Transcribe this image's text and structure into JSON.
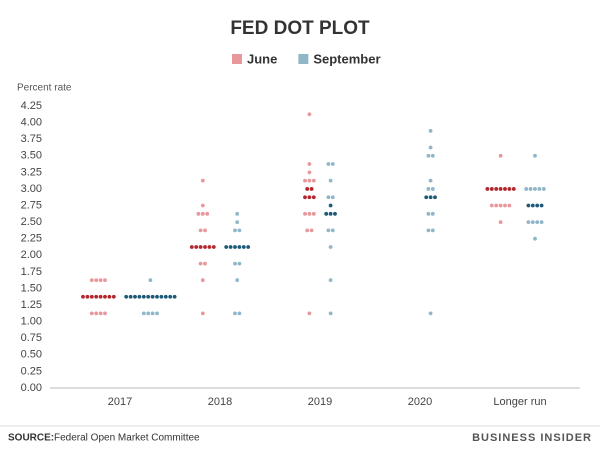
{
  "chart_data": {
    "type": "dot",
    "title": "FED DOT PLOT",
    "y_label": "Percent rate",
    "categories": [
      "2017",
      "2018",
      "2019",
      "2020",
      "Longer run"
    ],
    "ylim": [
      0,
      4.25
    ],
    "yticks": [
      {
        "value": 0,
        "label": "0.00"
      },
      {
        "value": 0.25,
        "label": "0.25"
      },
      {
        "value": 0.5,
        "label": "0.50"
      },
      {
        "value": 0.75,
        "label": "0.75"
      },
      {
        "value": 1,
        "label": "1.00"
      },
      {
        "value": 1.25,
        "label": "1.25"
      },
      {
        "value": 1.5,
        "label": "1.50"
      },
      {
        "value": 1.75,
        "label": "1.75"
      },
      {
        "value": 2,
        "label": "2.00"
      },
      {
        "value": 2.25,
        "label": "2.25"
      },
      {
        "value": 2.5,
        "label": "2.50"
      },
      {
        "value": 2.75,
        "label": "2.75"
      },
      {
        "value": 3,
        "label": "3.00"
      },
      {
        "value": 3.25,
        "label": "3.25"
      },
      {
        "value": 3.5,
        "label": "3.50"
      },
      {
        "value": 3.75,
        "label": "3.75"
      },
      {
        "value": 4,
        "label": "4.00"
      },
      {
        "value": 4.25,
        "label": "4.25"
      }
    ],
    "series": [
      {
        "name": "June",
        "color": "#e8979b",
        "median_color": "#b3282d",
        "values": [
          [
            1.625,
            1.625,
            1.625,
            1.625,
            1.375,
            1.375,
            1.375,
            1.375,
            1.375,
            1.375,
            1.375,
            1.375,
            1.125,
            1.125,
            1.125,
            1.125
          ],
          [
            3.125,
            2.75,
            2.625,
            2.625,
            2.625,
            2.375,
            2.375,
            2.125,
            2.125,
            2.125,
            2.125,
            2.125,
            2.125,
            1.875,
            1.875,
            1.625,
            1.125
          ],
          [
            4.125,
            3.375,
            3.25,
            3.125,
            3.125,
            3.125,
            3,
            3,
            2.875,
            2.875,
            2.875,
            2.625,
            2.625,
            2.625,
            2.375,
            2.375,
            1.125
          ],
          [],
          [
            3.5,
            3,
            3,
            3,
            3,
            3,
            3,
            3,
            2.75,
            2.75,
            2.75,
            2.75,
            2.75,
            2.5
          ]
        ],
        "medians": [
          [
            1.375
          ],
          [
            2.125
          ],
          [
            3,
            2.875
          ],
          [],
          [
            3
          ]
        ]
      },
      {
        "name": "September",
        "color": "#8fb7c8",
        "median_color": "#1c5a78",
        "values": [
          [
            1.625,
            1.375,
            1.375,
            1.375,
            1.375,
            1.375,
            1.375,
            1.375,
            1.375,
            1.375,
            1.375,
            1.375,
            1.375,
            1.125,
            1.125,
            1.125,
            1.125
          ],
          [
            2.625,
            2.5,
            2.375,
            2.375,
            2.125,
            2.125,
            2.125,
            2.125,
            2.125,
            2.125,
            1.875,
            1.875,
            1.625,
            1.125,
            1.125
          ],
          [
            3.375,
            3.375,
            3.125,
            2.875,
            2.875,
            2.75,
            2.625,
            2.625,
            2.625,
            2.375,
            2.375,
            2.125,
            1.625,
            1.125
          ],
          [
            3.875,
            3.625,
            3.5,
            3.5,
            3.125,
            3,
            3,
            2.875,
            2.875,
            2.875,
            2.625,
            2.625,
            2.375,
            2.375,
            1.125
          ],
          [
            3.5,
            3,
            3,
            3,
            3,
            3,
            2.75,
            2.75,
            2.75,
            2.75,
            2.5,
            2.5,
            2.5,
            2.5,
            2.25
          ]
        ],
        "medians": [
          [
            1.375
          ],
          [
            2.125
          ],
          [
            2.75,
            2.625
          ],
          [
            2.875
          ],
          [
            2.75
          ]
        ]
      }
    ],
    "source_label": "SOURCE:",
    "source": "Federal Open Market Committee",
    "brand": "BUSINESS INSIDER"
  }
}
